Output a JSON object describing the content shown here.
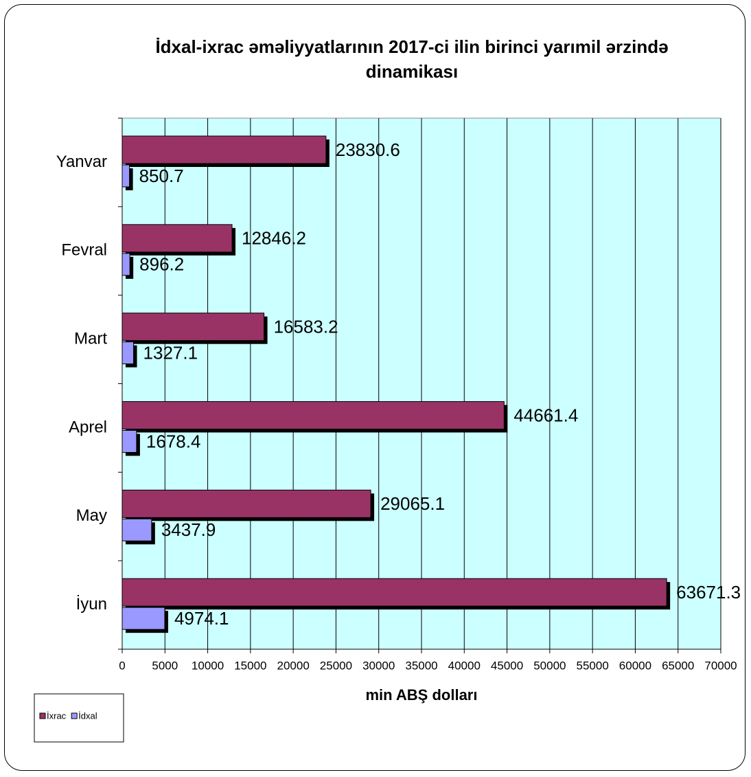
{
  "chart_data": {
    "type": "bar",
    "orientation": "horizontal",
    "title": "İdxal-ixrac əməliyyatlarının  2017-ci ilin birinci yarımil ərzində  dinamikası",
    "x_label": "min ABŞ dolları",
    "categories": [
      "Yanvar",
      "Fevral",
      "Mart",
      "Aprel",
      "May",
      "İyun"
    ],
    "series": [
      {
        "name": "İxrac",
        "color": "#993366",
        "values": [
          23830.6,
          12846.2,
          16583.2,
          44661.4,
          29065.1,
          63671.3
        ]
      },
      {
        "name": "İdxal",
        "color": "#9999ff",
        "values": [
          850.7,
          896.2,
          1327.1,
          1678.4,
          3437.9,
          4974.1
        ]
      }
    ],
    "xlim": [
      0,
      70000
    ],
    "xticks": [
      0,
      5000,
      10000,
      15000,
      20000,
      25000,
      30000,
      35000,
      40000,
      45000,
      50000,
      55000,
      60000,
      65000,
      70000
    ],
    "grid": true,
    "plot_background": "#ccffff",
    "legend": "bottom-left"
  }
}
